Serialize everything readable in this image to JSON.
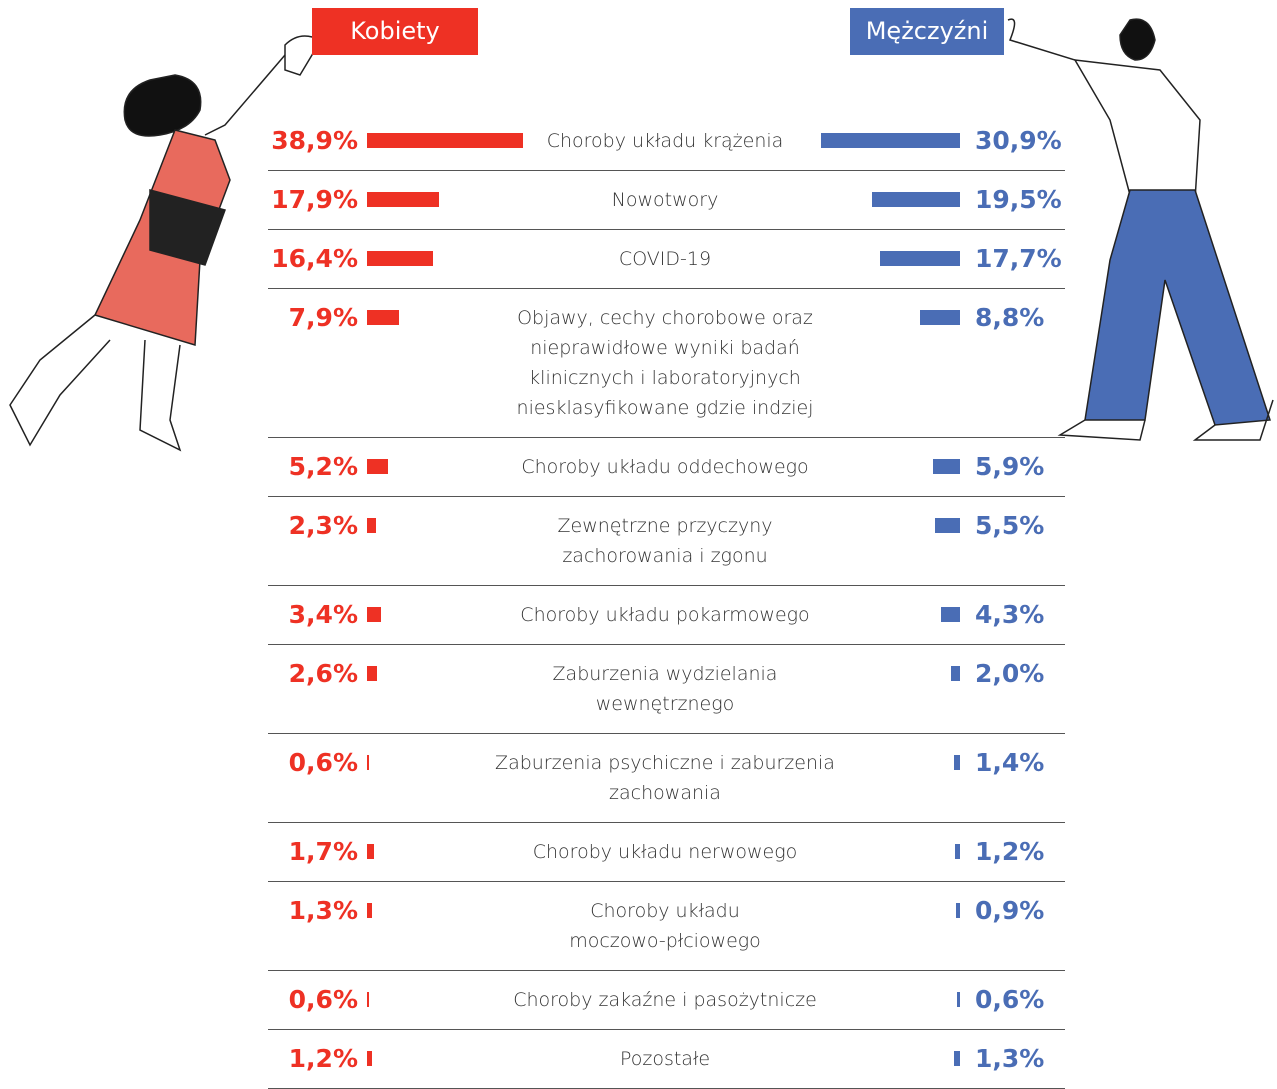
{
  "chart_data": {
    "type": "butterfly",
    "categories": [
      "Choroby układu krążenia",
      "Nowotwory",
      "COVID-19",
      "Objawy, cechy chorobowe oraz\nnieprawidłowe wyniki badań\nklinicznych i laboratoryjnych\nniesklasyfikowane gdzie indziej",
      "Choroby układu oddechowego",
      "Zewnętrzne przyczyny\nzachorowania i zgonu",
      "Choroby układu pokarmowego",
      "Zaburzenia wydzielania\nwewnętrznego",
      "Zaburzenia psychiczne i zaburzenia\nzachowania",
      "Choroby układu nerwowego",
      "Choroby układu\nmoczowo-płciowego",
      "Choroby zakaźne i pasożytnicze",
      "Pozostałe"
    ],
    "series": [
      {
        "name": "Kobiety",
        "color": "#ee3124",
        "values": [
          38.9,
          17.9,
          16.4,
          7.9,
          5.2,
          2.3,
          3.4,
          2.6,
          0.6,
          1.7,
          1.3,
          0.6,
          1.2
        ],
        "value_labels": [
          "38,9%",
          "17,9%",
          "16,4%",
          "7,9%",
          "5,2%",
          "2,3%",
          "3,4%",
          "2,6%",
          "0,6%",
          "1,7%",
          "1,3%",
          "0,6%",
          "1,2%"
        ]
      },
      {
        "name": "Mężczyźni",
        "color": "#4a6db5",
        "values": [
          30.9,
          19.5,
          17.7,
          8.8,
          5.9,
          5.5,
          4.3,
          2.0,
          1.4,
          1.2,
          0.9,
          0.6,
          1.3
        ],
        "value_labels": [
          "30,9%",
          "19,5%",
          "17,7%",
          "8,8%",
          "5,9%",
          "5,5%",
          "4,3%",
          "2,0%",
          "1,4%",
          "1,2%",
          "0,9%",
          "0,6%",
          "1,3%"
        ]
      }
    ]
  }
}
